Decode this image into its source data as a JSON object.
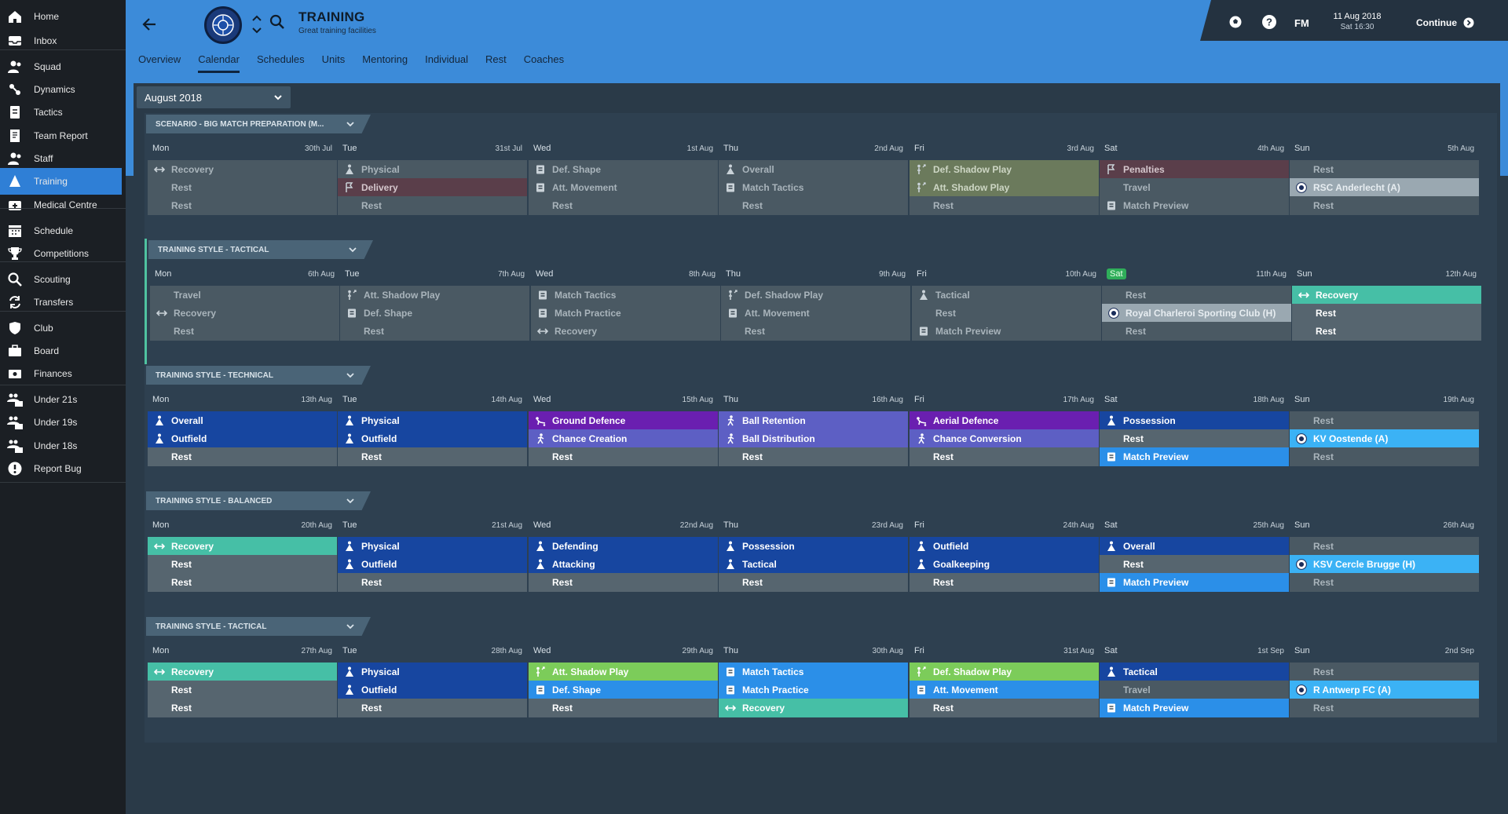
{
  "sidebar": {
    "items": [
      {
        "label": "Home",
        "icon": "home-icon"
      },
      {
        "label": "Inbox",
        "icon": "inbox-icon"
      },
      {
        "label": "Squad",
        "icon": "squad-icon"
      },
      {
        "label": "Dynamics",
        "icon": "dynamics-icon"
      },
      {
        "label": "Tactics",
        "icon": "tactics-icon"
      },
      {
        "label": "Team Report",
        "icon": "report-icon"
      },
      {
        "label": "Staff",
        "icon": "staff-icon"
      },
      {
        "label": "Training",
        "icon": "training-icon"
      },
      {
        "label": "Medical Centre",
        "icon": "medical-icon"
      },
      {
        "label": "Schedule",
        "icon": "calendar-icon"
      },
      {
        "label": "Competitions",
        "icon": "trophy-icon"
      },
      {
        "label": "Scouting",
        "icon": "search-icon"
      },
      {
        "label": "Transfers",
        "icon": "transfer-icon"
      },
      {
        "label": "Club",
        "icon": "shield-icon"
      },
      {
        "label": "Board",
        "icon": "board-icon"
      },
      {
        "label": "Finances",
        "icon": "finance-icon"
      },
      {
        "label": "Under 21s",
        "icon": "u21-icon"
      },
      {
        "label": "Under 19s",
        "icon": "u19-icon"
      },
      {
        "label": "Under 18s",
        "icon": "u18-icon"
      },
      {
        "label": "Report Bug",
        "icon": "bug-icon"
      }
    ]
  },
  "header": {
    "title": "TRAINING",
    "subtitle": "Great training facilities",
    "tabs": [
      "Overview",
      "Calendar",
      "Schedules",
      "Units",
      "Mentoring",
      "Individual",
      "Rest",
      "Coaches"
    ],
    "active_tab": "Calendar"
  },
  "topbar": {
    "fm": "FM",
    "date": "11 Aug 2018",
    "time": "Sat 16:30",
    "continue_label": "Continue"
  },
  "month": "August 2018",
  "weekdays": [
    "Mon",
    "Tue",
    "Wed",
    "Thu",
    "Fri",
    "Sat",
    "Sun"
  ],
  "weeks": [
    {
      "title": "SCENARIO - BIG MATCH PREPARATION (M...",
      "dates": [
        "30th Jul",
        "31st Jul",
        "1st Aug",
        "2nd Aug",
        "3rd Aug",
        "4th Aug",
        "5th Aug"
      ],
      "rows": [
        [
          [
            "Recovery",
            "c-dgrey",
            "recovery"
          ],
          [
            "Physical",
            "c-dgrey",
            "physical"
          ],
          [
            "Def. Shape",
            "c-dgrey",
            "board"
          ],
          [
            "Overall",
            "c-dgrey",
            "physical"
          ],
          [
            "Def. Shadow Play",
            "c-olive",
            "shadow"
          ],
          [
            "Penalties",
            "c-maroon",
            "penalty"
          ],
          [
            "Rest",
            "c-dgrey",
            ""
          ]
        ],
        [
          [
            "Rest",
            "c-dgrey",
            ""
          ],
          [
            "Delivery",
            "c-maroon",
            "penalty"
          ],
          [
            "Att. Movement",
            "c-dgrey",
            "board"
          ],
          [
            "Match Tactics",
            "c-dgrey",
            "board"
          ],
          [
            "Att. Shadow Play",
            "c-olive",
            "shadow"
          ],
          [
            "Travel",
            "c-dgrey",
            ""
          ],
          [
            "RSC Anderlecht (A)",
            "c-grey-light",
            "badge"
          ]
        ],
        [
          [
            "Rest",
            "c-dgrey",
            ""
          ],
          [
            "Rest",
            "c-dgrey",
            ""
          ],
          [
            "Rest",
            "c-dgrey",
            ""
          ],
          [
            "Rest",
            "c-dgrey",
            ""
          ],
          [
            "Rest",
            "c-dgrey",
            ""
          ],
          [
            "Match Preview",
            "c-dgrey",
            "board"
          ],
          [
            "Rest",
            "c-dgrey",
            ""
          ]
        ]
      ]
    },
    {
      "title": "TRAINING STYLE - TACTICAL",
      "dates": [
        "6th Aug",
        "7th Aug",
        "8th Aug",
        "9th Aug",
        "10th Aug",
        "11th Aug",
        "12th Aug"
      ],
      "rows": [
        [
          [
            "Travel",
            "c-dgrey",
            ""
          ],
          [
            "Att. Shadow Play",
            "c-dgrey",
            "shadow"
          ],
          [
            "Match Tactics",
            "c-dgrey",
            "board"
          ],
          [
            "Def. Shadow Play",
            "c-dgrey",
            "shadow"
          ],
          [
            "Tactical",
            "c-dgrey",
            "physical"
          ],
          [
            "Rest",
            "c-dgrey",
            ""
          ],
          [
            "Recovery",
            "c-teal",
            "recovery"
          ]
        ],
        [
          [
            "Recovery",
            "c-dgrey",
            "recovery"
          ],
          [
            "Def. Shape",
            "c-dgrey",
            "board"
          ],
          [
            "Match Practice",
            "c-dgrey",
            "board"
          ],
          [
            "Att. Movement",
            "c-dgrey",
            "board"
          ],
          [
            "Rest",
            "c-dgrey",
            ""
          ],
          [
            "Royal Charleroi Sporting Club (H)",
            "c-grey-light",
            "badge"
          ],
          [
            "Rest",
            "c-grey-bright",
            ""
          ]
        ],
        [
          [
            "Rest",
            "c-dgrey",
            ""
          ],
          [
            "Rest",
            "c-dgrey",
            ""
          ],
          [
            "Recovery",
            "c-dgrey",
            "recovery"
          ],
          [
            "Rest",
            "c-dgrey",
            ""
          ],
          [
            "Match Preview",
            "c-dgrey",
            "board"
          ],
          [
            "Rest",
            "c-dgrey",
            ""
          ],
          [
            "Rest",
            "c-grey-bright",
            ""
          ]
        ]
      ]
    },
    {
      "title": "TRAINING STYLE - TECHNICAL",
      "dates": [
        "13th Aug",
        "14th Aug",
        "15th Aug",
        "16th Aug",
        "17th Aug",
        "18th Aug",
        "19th Aug"
      ],
      "rows": [
        [
          [
            "Overall",
            "c-blue",
            "physical"
          ],
          [
            "Physical",
            "c-blue",
            "physical"
          ],
          [
            "Ground Defence",
            "c-purple",
            "tackle"
          ],
          [
            "Ball Retention",
            "c-lav",
            "runner"
          ],
          [
            "Aerial Defence",
            "c-purple",
            "tackle"
          ],
          [
            "Possession",
            "c-blue",
            "physical"
          ],
          [
            "Rest",
            "c-dgrey",
            ""
          ]
        ],
        [
          [
            "Outfield",
            "c-blue",
            "physical"
          ],
          [
            "Outfield",
            "c-blue",
            "physical"
          ],
          [
            "Chance Creation",
            "c-lav",
            "runner"
          ],
          [
            "Ball Distribution",
            "c-lav",
            "runner"
          ],
          [
            "Chance Conversion",
            "c-lav",
            "runner"
          ],
          [
            "Rest",
            "c-grey-bright",
            ""
          ],
          [
            "KV Oostende (A)",
            "c-cyan",
            "badge"
          ]
        ],
        [
          [
            "Rest",
            "c-grey-bright",
            ""
          ],
          [
            "Rest",
            "c-grey-bright",
            ""
          ],
          [
            "Rest",
            "c-grey-bright",
            ""
          ],
          [
            "Rest",
            "c-grey-bright",
            ""
          ],
          [
            "Rest",
            "c-grey-bright",
            ""
          ],
          [
            "Match Preview",
            "c-sky",
            "board"
          ],
          [
            "Rest",
            "c-dgrey",
            ""
          ]
        ]
      ]
    },
    {
      "title": "TRAINING STYLE - BALANCED",
      "dates": [
        "20th Aug",
        "21st Aug",
        "22nd Aug",
        "23rd Aug",
        "24th Aug",
        "25th Aug",
        "26th Aug"
      ],
      "rows": [
        [
          [
            "Recovery",
            "c-teal",
            "recovery"
          ],
          [
            "Physical",
            "c-blue",
            "physical"
          ],
          [
            "Defending",
            "c-blue",
            "physical"
          ],
          [
            "Possession",
            "c-blue",
            "physical"
          ],
          [
            "Outfield",
            "c-blue",
            "physical"
          ],
          [
            "Overall",
            "c-blue",
            "physical"
          ],
          [
            "Rest",
            "c-dgrey",
            ""
          ]
        ],
        [
          [
            "Rest",
            "c-grey-bright",
            ""
          ],
          [
            "Outfield",
            "c-blue",
            "physical"
          ],
          [
            "Attacking",
            "c-blue",
            "physical"
          ],
          [
            "Tactical",
            "c-blue",
            "physical"
          ],
          [
            "Goalkeeping",
            "c-blue",
            "physical"
          ],
          [
            "Rest",
            "c-grey-bright",
            ""
          ],
          [
            "KSV Cercle Brugge (H)",
            "c-cyan",
            "badge"
          ]
        ],
        [
          [
            "Rest",
            "c-grey-bright",
            ""
          ],
          [
            "Rest",
            "c-grey-bright",
            ""
          ],
          [
            "Rest",
            "c-grey-bright",
            ""
          ],
          [
            "Rest",
            "c-grey-bright",
            ""
          ],
          [
            "Rest",
            "c-grey-bright",
            ""
          ],
          [
            "Match Preview",
            "c-sky",
            "board"
          ],
          [
            "Rest",
            "c-dgrey",
            ""
          ]
        ]
      ]
    },
    {
      "title": "TRAINING STYLE - TACTICAL",
      "dates": [
        "27th Aug",
        "28th Aug",
        "29th Aug",
        "30th Aug",
        "31st Aug",
        "1st Sep",
        "2nd Sep"
      ],
      "rows": [
        [
          [
            "Recovery",
            "c-teal",
            "recovery"
          ],
          [
            "Physical",
            "c-blue",
            "physical"
          ],
          [
            "Att. Shadow Play",
            "c-green",
            "shadow"
          ],
          [
            "Match Tactics",
            "c-sky",
            "board"
          ],
          [
            "Def. Shadow Play",
            "c-green",
            "shadow"
          ],
          [
            "Tactical",
            "c-blue",
            "physical"
          ],
          [
            "Rest",
            "c-dgrey",
            ""
          ]
        ],
        [
          [
            "Rest",
            "c-grey-bright",
            ""
          ],
          [
            "Outfield",
            "c-blue",
            "physical"
          ],
          [
            "Def. Shape",
            "c-sky",
            "board"
          ],
          [
            "Match Practice",
            "c-sky",
            "board"
          ],
          [
            "Att. Movement",
            "c-sky",
            "board"
          ],
          [
            "Travel",
            "c-dgrey",
            ""
          ],
          [
            "R Antwerp FC (A)",
            "c-cyan",
            "badge"
          ]
        ],
        [
          [
            "Rest",
            "c-grey-bright",
            ""
          ],
          [
            "Rest",
            "c-grey-bright",
            ""
          ],
          [
            "Rest",
            "c-grey-bright",
            ""
          ],
          [
            "Recovery",
            "c-teal",
            "recovery"
          ],
          [
            "Rest",
            "c-grey-bright",
            ""
          ],
          [
            "Match Preview",
            "c-sky",
            "board"
          ],
          [
            "Rest",
            "c-dgrey",
            ""
          ]
        ]
      ]
    }
  ]
}
